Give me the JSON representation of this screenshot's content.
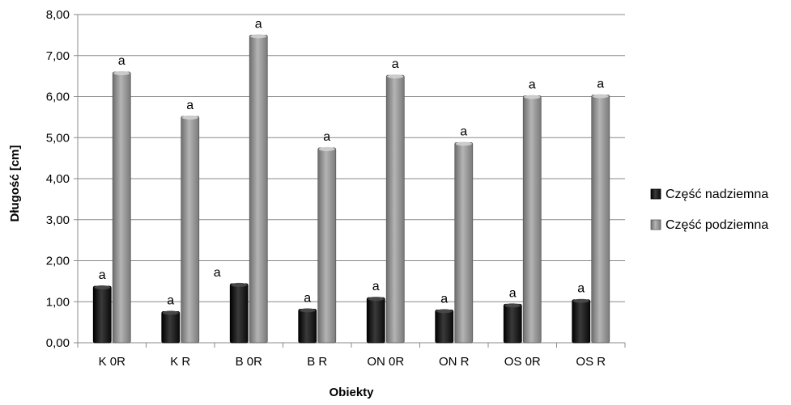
{
  "chart_data": {
    "type": "bar",
    "xlabel": "Obiekty",
    "ylabel": "Długość [cm]",
    "ylim": [
      0,
      8
    ],
    "yticks": [
      "0,00",
      "1,00",
      "2,00",
      "3,00",
      "4,00",
      "5,00",
      "6,00",
      "7,00",
      "8,00"
    ],
    "grid": true,
    "legend_position": "right",
    "categories": [
      "K 0R",
      "K R",
      "B 0R",
      "B R",
      "ON 0R",
      "ON R",
      "OS 0R",
      "OS R"
    ],
    "series": [
      {
        "name": "Część nadziemna",
        "color": "#1a1a1a",
        "values": [
          1.38,
          0.76,
          1.44,
          0.82,
          1.1,
          0.8,
          0.94,
          1.05
        ],
        "labels": [
          "a",
          "a",
          "a",
          "a",
          "a",
          "a",
          "a",
          "a"
        ]
      },
      {
        "name": "Część podziemna",
        "color": "#8c8c8c",
        "values": [
          6.6,
          5.52,
          7.5,
          4.75,
          6.52,
          4.88,
          6.02,
          6.04
        ],
        "labels": [
          "a",
          "a",
          "a",
          "a",
          "a",
          "a",
          "a",
          "a"
        ]
      }
    ]
  }
}
